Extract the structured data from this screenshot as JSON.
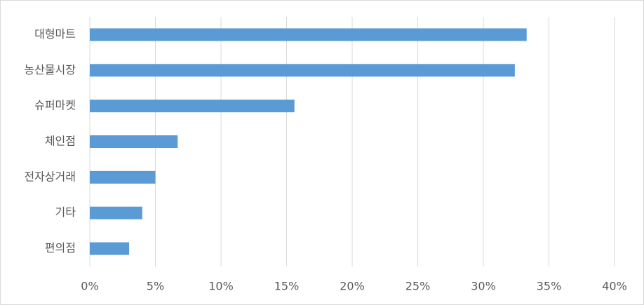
{
  "chart_data": {
    "type": "bar",
    "orientation": "horizontal",
    "categories": [
      "대형마트",
      "농산물시장",
      "슈퍼마켓",
      "체인점",
      "전자상거래",
      "기타",
      "편의점"
    ],
    "values": [
      33.3,
      32.4,
      15.6,
      6.7,
      5.0,
      4.0,
      3.0
    ],
    "color": "#5b9bd5",
    "xlim": [
      0,
      40
    ],
    "xticks": [
      {
        "value": 0,
        "label": "0%"
      },
      {
        "value": 5,
        "label": "5%"
      },
      {
        "value": 10,
        "label": "10%"
      },
      {
        "value": 15,
        "label": "15%"
      },
      {
        "value": 20,
        "label": "20%"
      },
      {
        "value": 25,
        "label": "25%"
      },
      {
        "value": 30,
        "label": "30%"
      },
      {
        "value": 35,
        "label": "35%"
      },
      {
        "value": 40,
        "label": "40%"
      }
    ],
    "grid": true
  }
}
